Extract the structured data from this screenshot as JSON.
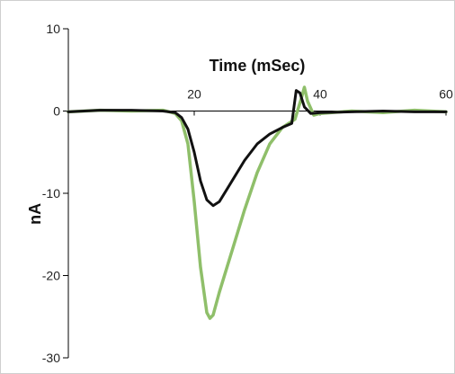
{
  "chart_data": {
    "type": "line",
    "title": "",
    "xlabel": "Time (mSec)",
    "ylabel": "nA",
    "xlim": [
      0,
      60
    ],
    "ylim": [
      -30,
      10
    ],
    "x_ticks": [
      20,
      40,
      60
    ],
    "y_ticks": [
      10,
      0,
      -10,
      -20,
      -30
    ],
    "x_tick_labels": [
      "20",
      "40",
      "60"
    ],
    "y_tick_labels": [
      "10",
      "0",
      "-10",
      "-20",
      "-30"
    ],
    "grid": false,
    "legend": "none",
    "series": [
      {
        "color": "#8fbf6a",
        "x": [
          0,
          5,
          10,
          15,
          17,
          18,
          19,
          20,
          21,
          22,
          22.5,
          23,
          24,
          26,
          28,
          30,
          32,
          34,
          36,
          37,
          37.5,
          38,
          39,
          40,
          45,
          50,
          55,
          60
        ],
        "y": [
          -0.1,
          0.1,
          0,
          0.1,
          -0.3,
          -1.2,
          -4,
          -11,
          -19,
          -24.5,
          -25.2,
          -24.8,
          -22,
          -17,
          -12,
          -7.5,
          -4,
          -2,
          -1,
          1.5,
          2.9,
          1.2,
          -0.5,
          -0.3,
          0,
          -0.2,
          0.1,
          -0.1
        ]
      },
      {
        "color": "#111111",
        "x": [
          0,
          5,
          10,
          15,
          17,
          18,
          19,
          20,
          21,
          22,
          23,
          24,
          26,
          28,
          30,
          32,
          34,
          35.5,
          36.2,
          36.8,
          37.5,
          38.5,
          40,
          45,
          50,
          55,
          60
        ],
        "y": [
          -0.1,
          0.1,
          0.1,
          0,
          -0.2,
          -0.8,
          -2.2,
          -5,
          -8.5,
          -10.8,
          -11.5,
          -11,
          -8.5,
          -6,
          -4,
          -2.8,
          -2,
          -1.5,
          2.5,
          2.2,
          0.5,
          -0.3,
          -0.2,
          -0.1,
          0,
          -0.1,
          -0.1
        ]
      }
    ]
  }
}
